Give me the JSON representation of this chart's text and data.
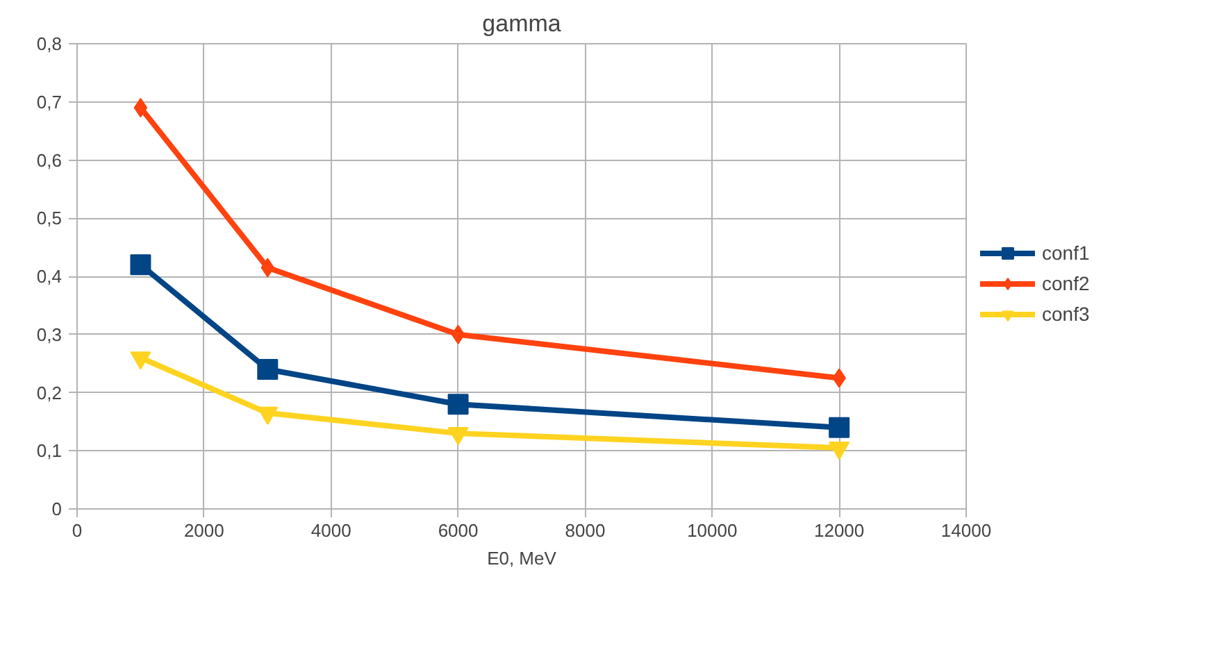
{
  "chart_data": {
    "type": "line",
    "title": "gamma",
    "xlabel": "E0, MeV",
    "x": [
      1000,
      3000,
      6000,
      12000
    ],
    "series": [
      {
        "name": "conf1",
        "color": "#004586",
        "marker": "square",
        "values": [
          0.42,
          0.24,
          0.18,
          0.14
        ]
      },
      {
        "name": "conf2",
        "color": "#ff420e",
        "marker": "diamond",
        "values": [
          0.69,
          0.415,
          0.3,
          0.225
        ]
      },
      {
        "name": "conf3",
        "color": "#ffd320",
        "marker": "triangle",
        "values": [
          0.26,
          0.165,
          0.13,
          0.105
        ]
      }
    ],
    "xlim": [
      0,
      14000
    ],
    "xticks": [
      0,
      2000,
      4000,
      6000,
      8000,
      10000,
      12000,
      14000
    ],
    "ylim": [
      0,
      0.8
    ],
    "yticks": [
      {
        "value": 0,
        "label": "0"
      },
      {
        "value": 0.1,
        "label": "0,1"
      },
      {
        "value": 0.2,
        "label": "0,2"
      },
      {
        "value": 0.3,
        "label": "0,3"
      },
      {
        "value": 0.4,
        "label": "0,4"
      },
      {
        "value": 0.5,
        "label": "0,5"
      },
      {
        "value": 0.6,
        "label": "0,6"
      },
      {
        "value": 0.7,
        "label": "0,7"
      },
      {
        "value": 0.8,
        "label": "0,8"
      }
    ],
    "grid": true,
    "legend": "right",
    "line_style": "solid"
  }
}
